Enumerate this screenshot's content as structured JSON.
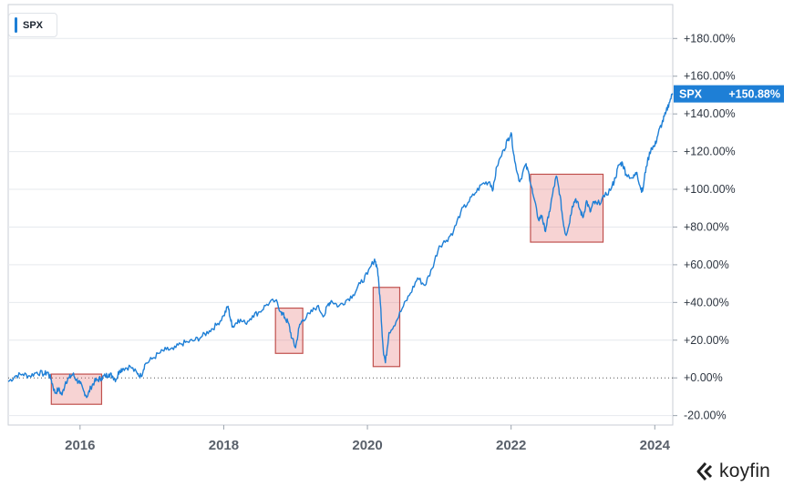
{
  "chart_data": {
    "type": "line",
    "legend": {
      "label": "SPX",
      "placement": "top-left"
    },
    "series": [
      {
        "name": "SPX",
        "color": "#1e7fd6",
        "last_value_label": "+150.88%",
        "points": [
          [
            2015.0,
            -2
          ],
          [
            2015.1,
            1
          ],
          [
            2015.2,
            2
          ],
          [
            2015.3,
            1
          ],
          [
            2015.4,
            3
          ],
          [
            2015.5,
            2
          ],
          [
            2015.55,
            3
          ],
          [
            2015.6,
            -1
          ],
          [
            2015.65,
            -8
          ],
          [
            2015.7,
            -6
          ],
          [
            2015.75,
            -9
          ],
          [
            2015.8,
            -2
          ],
          [
            2015.85,
            0
          ],
          [
            2015.9,
            2
          ],
          [
            2015.95,
            -1
          ],
          [
            2016.0,
            -3
          ],
          [
            2016.05,
            -7
          ],
          [
            2016.1,
            -10
          ],
          [
            2016.15,
            -5
          ],
          [
            2016.2,
            -2
          ],
          [
            2016.25,
            -1
          ],
          [
            2016.3,
            0
          ],
          [
            2016.35,
            1
          ],
          [
            2016.4,
            2
          ],
          [
            2016.45,
            1
          ],
          [
            2016.5,
            -1
          ],
          [
            2016.55,
            4
          ],
          [
            2016.6,
            5
          ],
          [
            2016.7,
            6
          ],
          [
            2016.8,
            2
          ],
          [
            2016.85,
            1
          ],
          [
            2016.9,
            7
          ],
          [
            2017.0,
            10
          ],
          [
            2017.1,
            13
          ],
          [
            2017.2,
            15
          ],
          [
            2017.3,
            15
          ],
          [
            2017.4,
            18
          ],
          [
            2017.5,
            19
          ],
          [
            2017.6,
            20
          ],
          [
            2017.7,
            22
          ],
          [
            2017.8,
            25
          ],
          [
            2017.9,
            28
          ],
          [
            2018.0,
            33
          ],
          [
            2018.06,
            38
          ],
          [
            2018.1,
            30
          ],
          [
            2018.13,
            27
          ],
          [
            2018.2,
            31
          ],
          [
            2018.3,
            29
          ],
          [
            2018.4,
            33
          ],
          [
            2018.5,
            35
          ],
          [
            2018.6,
            39
          ],
          [
            2018.72,
            41
          ],
          [
            2018.8,
            35
          ],
          [
            2018.85,
            32
          ],
          [
            2018.9,
            29
          ],
          [
            2018.95,
            21
          ],
          [
            2019.0,
            16
          ],
          [
            2019.05,
            27
          ],
          [
            2019.1,
            31
          ],
          [
            2019.2,
            34
          ],
          [
            2019.3,
            38
          ],
          [
            2019.4,
            33
          ],
          [
            2019.45,
            39
          ],
          [
            2019.5,
            41
          ],
          [
            2019.6,
            38
          ],
          [
            2019.7,
            41
          ],
          [
            2019.8,
            44
          ],
          [
            2019.9,
            50
          ],
          [
            2020.0,
            55
          ],
          [
            2020.1,
            63
          ],
          [
            2020.14,
            58
          ],
          [
            2020.18,
            40
          ],
          [
            2020.22,
            15
          ],
          [
            2020.25,
            8
          ],
          [
            2020.3,
            24
          ],
          [
            2020.4,
            30
          ],
          [
            2020.5,
            38
          ],
          [
            2020.6,
            45
          ],
          [
            2020.7,
            53
          ],
          [
            2020.8,
            49
          ],
          [
            2020.9,
            58
          ],
          [
            2021.0,
            70
          ],
          [
            2021.1,
            73
          ],
          [
            2021.2,
            78
          ],
          [
            2021.3,
            88
          ],
          [
            2021.4,
            93
          ],
          [
            2021.5,
            98
          ],
          [
            2021.6,
            103
          ],
          [
            2021.7,
            104
          ],
          [
            2021.75,
            100
          ],
          [
            2021.8,
            112
          ],
          [
            2021.9,
            121
          ],
          [
            2021.95,
            126
          ],
          [
            2022.0,
            130
          ],
          [
            2022.05,
            115
          ],
          [
            2022.12,
            104
          ],
          [
            2022.2,
            113
          ],
          [
            2022.25,
            108
          ],
          [
            2022.3,
            98
          ],
          [
            2022.38,
            84
          ],
          [
            2022.43,
            86
          ],
          [
            2022.47,
            78
          ],
          [
            2022.52,
            85
          ],
          [
            2022.58,
            98
          ],
          [
            2022.63,
            107
          ],
          [
            2022.68,
            97
          ],
          [
            2022.72,
            84
          ],
          [
            2022.76,
            76
          ],
          [
            2022.8,
            80
          ],
          [
            2022.85,
            91
          ],
          [
            2022.9,
            95
          ],
          [
            2022.95,
            90
          ],
          [
            2023.0,
            85
          ],
          [
            2023.05,
            94
          ],
          [
            2023.1,
            88
          ],
          [
            2023.15,
            93
          ],
          [
            2023.2,
            92
          ],
          [
            2023.3,
            96
          ],
          [
            2023.4,
            101
          ],
          [
            2023.45,
            106
          ],
          [
            2023.5,
            113
          ],
          [
            2023.55,
            114
          ],
          [
            2023.6,
            108
          ],
          [
            2023.7,
            106
          ],
          [
            2023.75,
            109
          ],
          [
            2023.8,
            101
          ],
          [
            2023.83,
            99
          ],
          [
            2023.88,
            112
          ],
          [
            2023.95,
            122
          ],
          [
            2024.0,
            123
          ],
          [
            2024.05,
            130
          ],
          [
            2024.1,
            135
          ],
          [
            2024.15,
            140
          ],
          [
            2024.2,
            146
          ],
          [
            2024.25,
            150.88
          ]
        ]
      }
    ],
    "y_axis": {
      "position": "right",
      "ticks": [
        180,
        160,
        140,
        120,
        100,
        80,
        60,
        40,
        20,
        0,
        -20
      ],
      "tick_labels": [
        "+180.00%",
        "+160.00%",
        "+140.00%",
        "+120.00%",
        "+100.00%",
        "+80.00%",
        "+60.00%",
        "+40.00%",
        "+20.00%",
        "+0.00%",
        "-20.00%"
      ],
      "range": [
        -25,
        198
      ],
      "baseline": 0
    },
    "x_axis": {
      "ticks": [
        2016,
        2018,
        2020,
        2022,
        2024
      ],
      "tick_labels": [
        "2016",
        "2018",
        "2020",
        "2022",
        "2024"
      ],
      "range": [
        2015.0,
        2024.25
      ]
    },
    "grid": true,
    "highlight_boxes": [
      {
        "x0": 2015.6,
        "x1": 2016.3,
        "y0": -14,
        "y1": 2
      },
      {
        "x0": 2018.72,
        "x1": 2019.1,
        "y0": 13,
        "y1": 37
      },
      {
        "x0": 2020.08,
        "x1": 2020.45,
        "y0": 6,
        "y1": 48
      },
      {
        "x0": 2022.27,
        "x1": 2023.28,
        "y0": 72,
        "y1": 108
      }
    ]
  },
  "brand": {
    "name": "koyfin"
  },
  "colors": {
    "line": "#1e7fd6",
    "box_fill": "rgba(230,110,110,0.30)",
    "box_stroke": "#c0504d",
    "badge_bg": "#1e7fd6"
  }
}
